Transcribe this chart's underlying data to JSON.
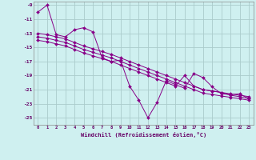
{
  "background_color": "#cff0f0",
  "grid_color": "#aacccc",
  "line_color": "#880088",
  "marker_color": "#880088",
  "xlabel": "Windchill (Refroidissement éolien,°C)",
  "xlim": [
    -0.5,
    23.5
  ],
  "ylim": [
    -26,
    -8.5
  ],
  "yticks": [
    -9,
    -11,
    -13,
    -15,
    -17,
    -19,
    -21,
    -23,
    -25
  ],
  "xticks": [
    0,
    1,
    2,
    3,
    4,
    5,
    6,
    7,
    8,
    9,
    10,
    11,
    12,
    13,
    14,
    15,
    16,
    17,
    18,
    19,
    20,
    21,
    22,
    23
  ],
  "series": [
    {
      "x": [
        0,
        1,
        2,
        3,
        4,
        5,
        6,
        7,
        8,
        9,
        10,
        11,
        12,
        13,
        14,
        15,
        16,
        17,
        18,
        19,
        20,
        21,
        22,
        23
      ],
      "y": [
        -10.0,
        -9.0,
        -13.2,
        -13.5,
        -12.5,
        -12.2,
        -12.8,
        -16.5,
        -17.0,
        -16.8,
        -20.5,
        -22.5,
        -25.0,
        -22.8,
        -19.7,
        -20.3,
        -20.8,
        -18.7,
        -19.3,
        -20.6,
        -21.6,
        -21.7,
        -21.6,
        -22.3
      ]
    },
    {
      "x": [
        0,
        1,
        2,
        3,
        4,
        5,
        6,
        7,
        8,
        9,
        10,
        11,
        12,
        13,
        14,
        15,
        16,
        17,
        18,
        19,
        20,
        21,
        22,
        23
      ],
      "y": [
        -13.0,
        -13.2,
        -13.5,
        -13.8,
        -14.3,
        -14.8,
        -15.2,
        -15.6,
        -16.0,
        -16.5,
        -17.0,
        -17.5,
        -18.0,
        -18.5,
        -19.0,
        -19.5,
        -20.0,
        -20.5,
        -21.0,
        -21.2,
        -21.4,
        -21.6,
        -21.8,
        -22.0
      ]
    },
    {
      "x": [
        0,
        1,
        2,
        3,
        4,
        5,
        6,
        7,
        8,
        9,
        10,
        11,
        12,
        13,
        14,
        15,
        16,
        17,
        18,
        19,
        20,
        21,
        22,
        23
      ],
      "y": [
        -13.5,
        -13.7,
        -14.0,
        -14.3,
        -14.8,
        -15.3,
        -15.7,
        -16.1,
        -16.5,
        -17.0,
        -17.5,
        -18.0,
        -18.5,
        -19.0,
        -19.5,
        -20.0,
        -20.5,
        -21.0,
        -21.5,
        -21.7,
        -21.9,
        -22.1,
        -22.3,
        -22.5
      ]
    },
    {
      "x": [
        0,
        1,
        2,
        3,
        4,
        5,
        6,
        7,
        8,
        9,
        10,
        11,
        12,
        13,
        14,
        15,
        16,
        17,
        18,
        19,
        20,
        21,
        22,
        23
      ],
      "y": [
        -14.0,
        -14.2,
        -14.5,
        -14.8,
        -15.3,
        -15.8,
        -16.2,
        -16.6,
        -17.0,
        -17.5,
        -18.0,
        -18.5,
        -19.0,
        -19.5,
        -20.0,
        -20.5,
        -19.0,
        -20.5,
        -21.0,
        -21.2,
        -21.4,
        -21.8,
        -22.0,
        -22.3
      ]
    }
  ]
}
